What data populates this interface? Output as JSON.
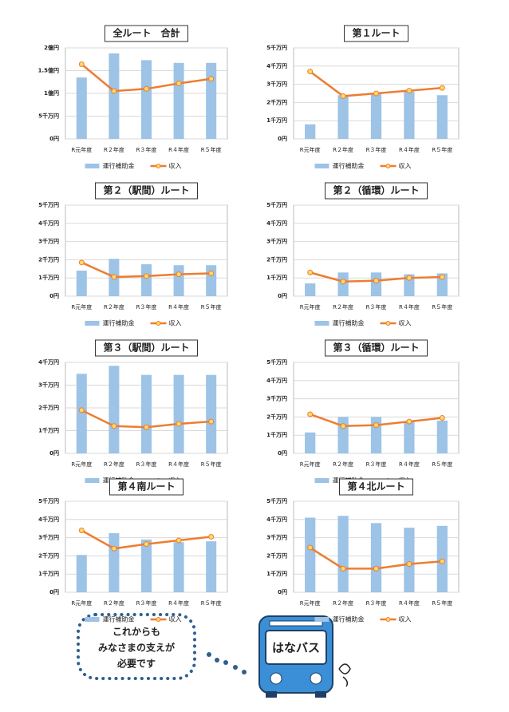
{
  "chart_data": [
    {
      "type": "combo",
      "title": "全ルート　合計",
      "categories": [
        "R元年度",
        "R２年度",
        "R３年度",
        "R４年度",
        "R５年度"
      ],
      "series": [
        {
          "name": "運行補助金",
          "color": "#9dc3e6",
          "values": [
            13500,
            18800,
            17300,
            16700,
            16700
          ]
        },
        {
          "name": "収入",
          "color": "#ed7d31",
          "values": [
            16400,
            10500,
            11000,
            12200,
            13200
          ]
        }
      ],
      "ylim": [
        0,
        20000
      ],
      "yticks": [
        {
          "value": 0,
          "label": "0円"
        },
        {
          "value": 5000,
          "label": "5千万円"
        },
        {
          "value": 10000,
          "label": "1億円"
        },
        {
          "value": 15000,
          "label": "1.5億円"
        },
        {
          "value": 20000,
          "label": "2億円"
        }
      ],
      "grid": true
    },
    {
      "type": "combo",
      "title": "第１ルート",
      "categories": [
        "R元年度",
        "R２年度",
        "R３年度",
        "R４年度",
        "R５年度"
      ],
      "series": [
        {
          "name": "運行補助金",
          "color": "#9dc3e6",
          "values": [
            800,
            2400,
            2500,
            2600,
            2400
          ]
        },
        {
          "name": "収入",
          "color": "#ed7d31",
          "values": [
            3700,
            2350,
            2500,
            2650,
            2800
          ]
        }
      ],
      "ylim": [
        0,
        5000
      ],
      "yticks": [
        {
          "value": 0,
          "label": "0円"
        },
        {
          "value": 1000,
          "label": "1千万円"
        },
        {
          "value": 2000,
          "label": "2千万円"
        },
        {
          "value": 3000,
          "label": "3千万円"
        },
        {
          "value": 4000,
          "label": "4千万円"
        },
        {
          "value": 5000,
          "label": "5千万円"
        }
      ],
      "grid": true
    },
    {
      "type": "combo",
      "title": "第２（駅間）ルート",
      "categories": [
        "R元年度",
        "R２年度",
        "R３年度",
        "R４年度",
        "R５年度"
      ],
      "series": [
        {
          "name": "運行補助金",
          "color": "#9dc3e6",
          "values": [
            1400,
            2050,
            1750,
            1700,
            1700
          ]
        },
        {
          "name": "収入",
          "color": "#ed7d31",
          "values": [
            1850,
            1050,
            1100,
            1200,
            1250
          ]
        }
      ],
      "ylim": [
        0,
        5000
      ],
      "yticks": [
        {
          "value": 0,
          "label": "0円"
        },
        {
          "value": 1000,
          "label": "1千万円"
        },
        {
          "value": 2000,
          "label": "2千万円"
        },
        {
          "value": 3000,
          "label": "3千万円"
        },
        {
          "value": 4000,
          "label": "4千万円"
        },
        {
          "value": 5000,
          "label": "5千万円"
        }
      ],
      "grid": true
    },
    {
      "type": "combo",
      "title": "第２（循環）ルート",
      "categories": [
        "R元年度",
        "R２年度",
        "R３年度",
        "R４年度",
        "R５年度"
      ],
      "series": [
        {
          "name": "運行補助金",
          "color": "#9dc3e6",
          "values": [
            700,
            1300,
            1300,
            1200,
            1250
          ]
        },
        {
          "name": "収入",
          "color": "#ed7d31",
          "values": [
            1300,
            800,
            850,
            1000,
            1050
          ]
        }
      ],
      "ylim": [
        0,
        5000
      ],
      "yticks": [
        {
          "value": 0,
          "label": "0円"
        },
        {
          "value": 1000,
          "label": "1千万円"
        },
        {
          "value": 2000,
          "label": "2千万円"
        },
        {
          "value": 3000,
          "label": "3千万円"
        },
        {
          "value": 4000,
          "label": "4千万円"
        },
        {
          "value": 5000,
          "label": "5千万円"
        }
      ],
      "grid": true
    },
    {
      "type": "combo",
      "title": "第３（駅間）ルート",
      "categories": [
        "R元年度",
        "R２年度",
        "R３年度",
        "R４年度",
        "R５年度"
      ],
      "series": [
        {
          "name": "運行補助金",
          "color": "#9dc3e6",
          "values": [
            3500,
            3850,
            3450,
            3450,
            3450
          ]
        },
        {
          "name": "収入",
          "color": "#ed7d31",
          "values": [
            1900,
            1200,
            1150,
            1300,
            1400
          ]
        }
      ],
      "ylim": [
        0,
        4000
      ],
      "yticks": [
        {
          "value": 0,
          "label": "0円"
        },
        {
          "value": 1000,
          "label": "1千万円"
        },
        {
          "value": 2000,
          "label": "2千万円"
        },
        {
          "value": 3000,
          "label": "3千万円"
        },
        {
          "value": 4000,
          "label": "4千万円"
        }
      ],
      "grid": true
    },
    {
      "type": "combo",
      "title": "第３（循環）ルート",
      "categories": [
        "R元年度",
        "R２年度",
        "R３年度",
        "R４年度",
        "R５年度"
      ],
      "series": [
        {
          "name": "運行補助金",
          "color": "#9dc3e6",
          "values": [
            1150,
            2000,
            2000,
            1750,
            1800
          ]
        },
        {
          "name": "収入",
          "color": "#ed7d31",
          "values": [
            2150,
            1500,
            1550,
            1750,
            1950
          ]
        }
      ],
      "ylim": [
        0,
        5000
      ],
      "yticks": [
        {
          "value": 0,
          "label": "0円"
        },
        {
          "value": 1000,
          "label": "1千万円"
        },
        {
          "value": 2000,
          "label": "2千万円"
        },
        {
          "value": 3000,
          "label": "3千万円"
        },
        {
          "value": 4000,
          "label": "4千万円"
        },
        {
          "value": 5000,
          "label": "5千万円"
        }
      ],
      "grid": true
    },
    {
      "type": "combo",
      "title": "第４南ルート",
      "categories": [
        "R元年度",
        "R２年度",
        "R３年度",
        "R４年度",
        "R５年度"
      ],
      "series": [
        {
          "name": "運行補助金",
          "color": "#9dc3e6",
          "values": [
            2050,
            3250,
            2900,
            2750,
            2800
          ]
        },
        {
          "name": "収入",
          "color": "#ed7d31",
          "values": [
            3400,
            2400,
            2650,
            2850,
            3050
          ]
        }
      ],
      "ylim": [
        0,
        5000
      ],
      "yticks": [
        {
          "value": 0,
          "label": "0円"
        },
        {
          "value": 1000,
          "label": "1千万円"
        },
        {
          "value": 2000,
          "label": "2千万円"
        },
        {
          "value": 3000,
          "label": "3千万円"
        },
        {
          "value": 4000,
          "label": "4千万円"
        },
        {
          "value": 5000,
          "label": "5千万円"
        }
      ],
      "grid": true
    },
    {
      "type": "combo",
      "title": "第４北ルート",
      "categories": [
        "R元年度",
        "R２年度",
        "R３年度",
        "R４年度",
        "R５年度"
      ],
      "series": [
        {
          "name": "運行補助金",
          "color": "#9dc3e6",
          "values": [
            4100,
            4200,
            3800,
            3550,
            3650
          ]
        },
        {
          "name": "収入",
          "color": "#ed7d31",
          "values": [
            2450,
            1300,
            1300,
            1550,
            1700
          ]
        }
      ],
      "ylim": [
        0,
        5000
      ],
      "yticks": [
        {
          "value": 0,
          "label": "0円"
        },
        {
          "value": 1000,
          "label": "1千万円"
        },
        {
          "value": 2000,
          "label": "2千万円"
        },
        {
          "value": 3000,
          "label": "3千万円"
        },
        {
          "value": 4000,
          "label": "4千万円"
        },
        {
          "value": 5000,
          "label": "5千万円"
        }
      ],
      "grid": true
    }
  ],
  "message": {
    "lines": [
      "これからも",
      "みなさまの支えが",
      "必要です"
    ]
  },
  "bus": {
    "label": "はなバス"
  }
}
